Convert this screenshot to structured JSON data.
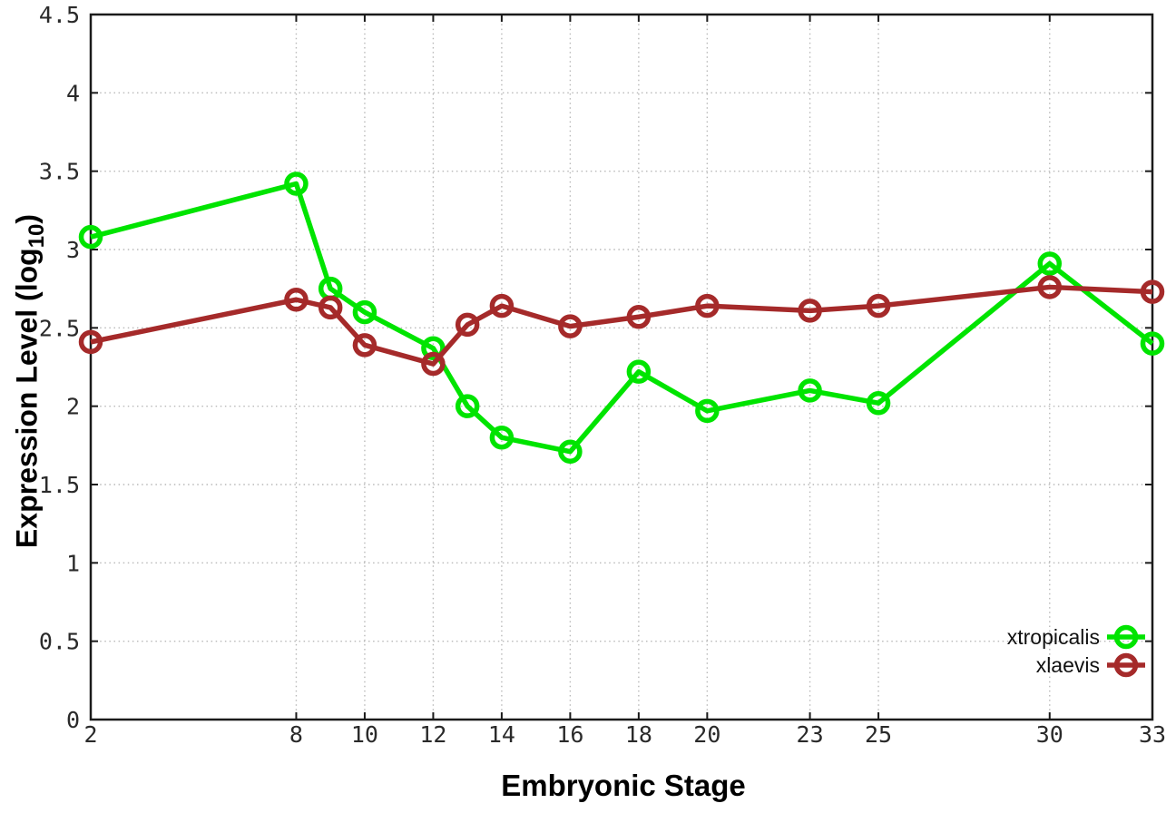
{
  "chart_data": {
    "type": "line",
    "title": "",
    "xlabel": "Embryonic Stage",
    "ylabel": "Expression Level (log10)",
    "ylabel_parts": {
      "main": "Expression Level (log",
      "sub": "10",
      "end": ")"
    },
    "xlim": [
      2,
      33
    ],
    "ylim": [
      0,
      4.5
    ],
    "x": [
      2,
      8,
      9,
      10,
      12,
      13,
      14,
      16,
      18,
      20,
      23,
      25,
      30,
      33
    ],
    "xticks": [
      2,
      8,
      10,
      12,
      14,
      16,
      18,
      20,
      23,
      25,
      30,
      33
    ],
    "yticks": [
      0,
      0.5,
      1,
      1.5,
      2,
      2.5,
      3,
      3.5,
      4,
      4.5
    ],
    "grid": true,
    "legend_position": "inside-bottom-right",
    "series": [
      {
        "name": "xtropicalis",
        "color": "#00e400",
        "marker": "open-circle",
        "values": [
          3.08,
          3.42,
          2.75,
          2.6,
          2.37,
          2.0,
          1.8,
          1.71,
          2.22,
          1.97,
          2.1,
          2.02,
          2.91,
          2.4
        ]
      },
      {
        "name": "xlaevis",
        "color": "#a52a2a",
        "marker": "open-circle",
        "values": [
          2.41,
          2.68,
          2.63,
          2.39,
          2.27,
          2.52,
          2.64,
          2.51,
          2.57,
          2.64,
          2.61,
          2.64,
          2.76,
          2.73
        ]
      }
    ],
    "colors": {
      "background": "#ffffff",
      "grid": "#b9b9b9",
      "border": "#1a1a1a",
      "tick_label": "#2a2a2a",
      "axis_title": "#000000"
    }
  }
}
